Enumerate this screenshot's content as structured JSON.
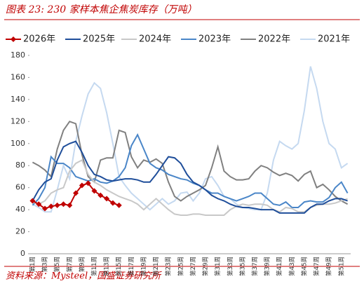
{
  "chart_data": {
    "type": "line",
    "title": "图表 23:  230 家样本焦企焦炭库存（万吨）",
    "source": "资料来源：Mysteel，国盛证券研究所",
    "categories": [
      "第1周",
      null,
      "第3周",
      null,
      "第5周",
      null,
      "第7周",
      null,
      "第9周",
      null,
      "第11周",
      null,
      "第13周",
      null,
      "第15周",
      null,
      "第17周",
      null,
      "第19周",
      null,
      "第21周",
      null,
      "第23周",
      null,
      "第25周",
      null,
      "第27周",
      null,
      "第29周",
      null,
      "第31周",
      null,
      "第33周",
      null,
      "第35周",
      null,
      "第37周",
      null,
      "第39周",
      null,
      "第41周",
      null,
      "第43周",
      null,
      "第45周",
      null,
      "第47周",
      null,
      "第49周",
      null,
      "第51周",
      null
    ],
    "ylim": [
      0,
      180
    ],
    "yticks": [
      0,
      20,
      40,
      60,
      80,
      100,
      120,
      140,
      160,
      180
    ],
    "series": [
      {
        "name": "2026年",
        "color": "#c00000",
        "marker": "diamond",
        "values": [
          48,
          45,
          41,
          43,
          44,
          45,
          44,
          55,
          62,
          64,
          57,
          53,
          50,
          46,
          44,
          null,
          null,
          null,
          null,
          null,
          null,
          null,
          null,
          null,
          null,
          null,
          null,
          null,
          null,
          null,
          null,
          null,
          null,
          null,
          null,
          null,
          null,
          null,
          null,
          null,
          null,
          null,
          null,
          null,
          null,
          null,
          null,
          null,
          null,
          null,
          null,
          null
        ]
      },
      {
        "name": "2025年",
        "color": "#1f4e9a",
        "values": [
          48,
          58,
          65,
          68,
          85,
          97,
          100,
          102,
          92,
          80,
          72,
          70,
          67,
          66,
          67,
          68,
          68,
          67,
          65,
          65,
          72,
          80,
          88,
          87,
          82,
          72,
          65,
          62,
          58,
          53,
          50,
          48,
          45,
          43,
          42,
          42,
          41,
          40,
          40,
          40,
          37,
          37,
          37,
          37,
          37,
          42,
          45,
          45,
          48,
          50,
          50,
          48
        ]
      },
      {
        "name": "2024年",
        "color": "#c8c8c8",
        "values": [
          47,
          45,
          48,
          55,
          58,
          60,
          75,
          82,
          85,
          72,
          65,
          62,
          58,
          55,
          52,
          50,
          48,
          45,
          40,
          45,
          50,
          45,
          40,
          36,
          35,
          35,
          36,
          36,
          35,
          35,
          35,
          35,
          40,
          43,
          45,
          44,
          45,
          45,
          44,
          40,
          38,
          42,
          41,
          38,
          38,
          42,
          44,
          45,
          45,
          46,
          48,
          50
        ]
      },
      {
        "name": "2023年",
        "color": "#4a86c8",
        "values": [
          44,
          50,
          60,
          88,
          82,
          82,
          78,
          70,
          68,
          66,
          68,
          65,
          64,
          66,
          70,
          78,
          98,
          108,
          95,
          82,
          78,
          76,
          72,
          70,
          68,
          67,
          64,
          62,
          58,
          55,
          55,
          52,
          50,
          48,
          50,
          52,
          55,
          55,
          50,
          45,
          44,
          47,
          42,
          42,
          47,
          48,
          47,
          47,
          51,
          60,
          65,
          55
        ]
      },
      {
        "name": "2022年",
        "color": "#808080",
        "values": [
          83,
          80,
          76,
          70,
          95,
          112,
          120,
          118,
          90,
          70,
          65,
          85,
          87,
          87,
          112,
          110,
          88,
          78,
          85,
          83,
          86,
          82,
          65,
          52,
          48,
          52,
          55,
          58,
          62,
          78,
          97,
          75,
          70,
          67,
          67,
          68,
          75,
          80,
          78,
          74,
          71,
          73,
          71,
          66,
          72,
          75,
          60,
          63,
          58,
          52,
          48,
          45
        ]
      },
      {
        "name": "2021年",
        "color": "#c5d9f0",
        "values": [
          45,
          42,
          38,
          38,
          58,
          80,
          68,
          102,
          125,
          145,
          155,
          150,
          128,
          100,
          70,
          62,
          55,
          50,
          45,
          40,
          45,
          50,
          45,
          48,
          55,
          56,
          48,
          55,
          68,
          70,
          62,
          52,
          50,
          45,
          42,
          41,
          40,
          40,
          55,
          85,
          102,
          98,
          95,
          100,
          130,
          170,
          150,
          120,
          100,
          95,
          78,
          82
        ]
      }
    ]
  }
}
